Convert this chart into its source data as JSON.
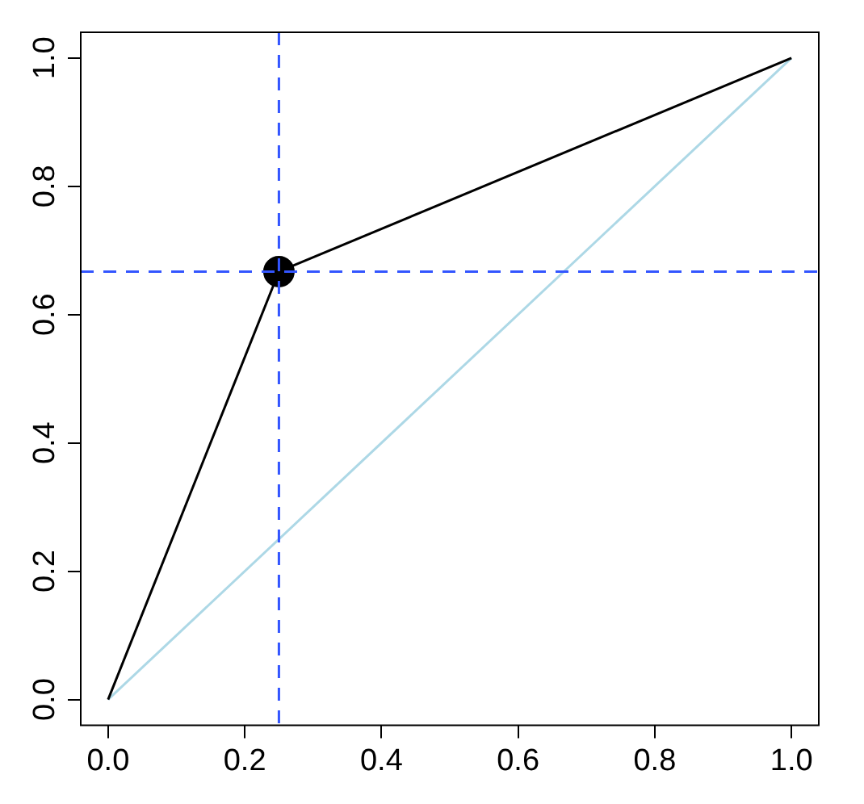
{
  "chart_data": {
    "type": "line",
    "x": [
      0,
      0.25,
      1
    ],
    "series": [
      {
        "color": "#000000",
        "values": [
          0,
          0.667,
          1
        ],
        "marker": "none"
      },
      {
        "type": "scatter",
        "x": [
          0.25
        ],
        "values": [
          0.667
        ],
        "color": "#000000",
        "marker": "circle"
      },
      {
        "x": [
          0,
          1
        ],
        "values": [
          0,
          1
        ],
        "color": "#add8e6",
        "marker": "none"
      }
    ],
    "xlim": [
      -0.04,
      1.04
    ],
    "ylim": [
      -0.04,
      1.04
    ],
    "xticks": [
      {
        "value": 0,
        "label": "0.0"
      },
      0.2,
      0.4,
      0.6,
      0.8,
      {
        "value": 1,
        "label": "1.0"
      }
    ],
    "yticks": [
      {
        "value": 0,
        "label": "0.0"
      },
      0.2,
      0.4,
      0.6,
      0.8,
      {
        "value": 1,
        "label": "1.0"
      }
    ],
    "ref_lines": [
      {
        "axis": "x",
        "value": 0.25,
        "color": "#3355ff",
        "line_style": "dashed"
      },
      {
        "axis": "y",
        "value": 0.667,
        "color": "#3355ff",
        "line_style": "dashed"
      }
    ],
    "grid": false,
    "legend": false
  }
}
